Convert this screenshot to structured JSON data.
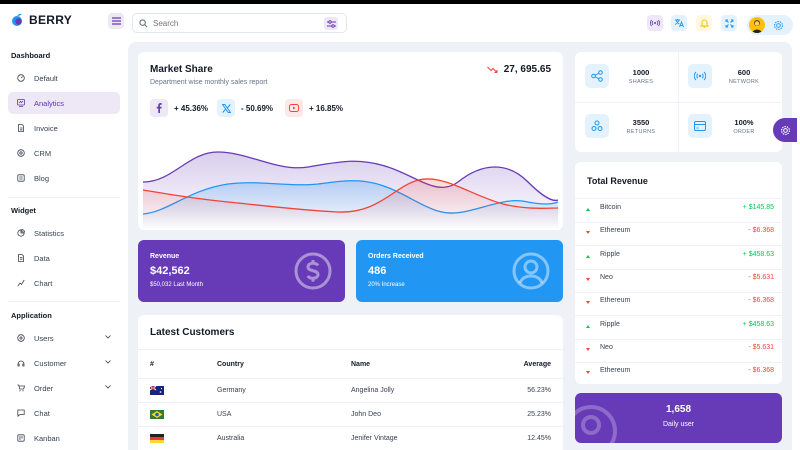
{
  "brand": {
    "name": "BERRY"
  },
  "search": {
    "placeholder": "Search"
  },
  "sidebar": {
    "groups": [
      {
        "title": "Dashboard",
        "items": [
          {
            "label": "Default",
            "icon": "dashboard-icon"
          },
          {
            "label": "Analytics",
            "icon": "analytics-icon",
            "active": true
          },
          {
            "label": "Invoice",
            "icon": "invoice-icon"
          },
          {
            "label": "CRM",
            "icon": "crm-icon"
          },
          {
            "label": "Blog",
            "icon": "blog-icon"
          }
        ]
      },
      {
        "title": "Widget",
        "items": [
          {
            "label": "Statistics",
            "icon": "statistics-icon"
          },
          {
            "label": "Data",
            "icon": "data-icon"
          },
          {
            "label": "Chart",
            "icon": "chart-icon"
          }
        ]
      },
      {
        "title": "Application",
        "items": [
          {
            "label": "Users",
            "icon": "users-icon",
            "expandable": true
          },
          {
            "label": "Customer",
            "icon": "customer-icon",
            "expandable": true
          },
          {
            "label": "Order",
            "icon": "order-icon",
            "expandable": true
          },
          {
            "label": "Chat",
            "icon": "chat-icon"
          },
          {
            "label": "Kanban",
            "icon": "kanban-icon"
          }
        ]
      }
    ]
  },
  "market_share": {
    "title": "Market Share",
    "subtitle": "Department wise monthly sales report",
    "total": "27, 695.65",
    "stats": [
      {
        "icon": "facebook-icon",
        "value": "+ 45.36%",
        "color": "#ede7f6",
        "fg": "#673ab7"
      },
      {
        "icon": "twitter-icon",
        "value": "- 50.69%",
        "color": "#e3f2fd",
        "fg": "#2196f3"
      },
      {
        "icon": "youtube-icon",
        "value": "+ 16.85%",
        "color": "#fde8e8",
        "fg": "#f44336"
      }
    ]
  },
  "revenue_card": {
    "title": "Revenue",
    "value": "$42,562",
    "sub": "$50,032 Last Month",
    "color": "#673ab7"
  },
  "orders_card": {
    "title": "Orders Received",
    "value": "486",
    "sub": "20% Increase",
    "color": "#2196f3"
  },
  "latest_customers": {
    "title": "Latest Customers",
    "headers": [
      "#",
      "Country",
      "Name",
      "Average"
    ],
    "rows": [
      {
        "flag": "australia",
        "country": "Germany",
        "name": "Angelina Jolly",
        "average": "56.23%"
      },
      {
        "flag": "brazil",
        "country": "USA",
        "name": "John Deo",
        "average": "25.23%"
      },
      {
        "flag": "germany",
        "country": "Australia",
        "name": "Jenifer Vintage",
        "average": "12.45%"
      }
    ]
  },
  "social_stats": [
    {
      "value": "1000",
      "label": "SHARES",
      "icon": "share-icon"
    },
    {
      "value": "600",
      "label": "NETWORK",
      "icon": "network-icon"
    },
    {
      "value": "3550",
      "label": "RETURNS",
      "icon": "returns-icon"
    },
    {
      "value": "100%",
      "label": "ORDER",
      "icon": "order-card-icon"
    }
  ],
  "total_revenue": {
    "title": "Total Revenue",
    "rows": [
      {
        "name": "Bitcoin",
        "value": "+ $145.85",
        "dir": "up"
      },
      {
        "name": "Ethereum",
        "value": "- $6.368",
        "dir": "down"
      },
      {
        "name": "Ripple",
        "value": "+ $458.63",
        "dir": "up"
      },
      {
        "name": "Neo",
        "value": "- $5.631",
        "dir": "down"
      },
      {
        "name": "Ethereum",
        "value": "- $6.368",
        "dir": "down"
      },
      {
        "name": "Ripple",
        "value": "+ $458.63",
        "dir": "up"
      },
      {
        "name": "Neo",
        "value": "- $5.631",
        "dir": "down"
      },
      {
        "name": "Ethereum",
        "value": "- $6.368",
        "dir": "down"
      }
    ]
  },
  "daily_user": {
    "value": "1,658",
    "label": "Daily user",
    "color": "#673ab7"
  },
  "colors": {
    "primary": "#673ab7",
    "secondary": "#2196f3",
    "success": "#00c853",
    "error": "#f44336"
  }
}
